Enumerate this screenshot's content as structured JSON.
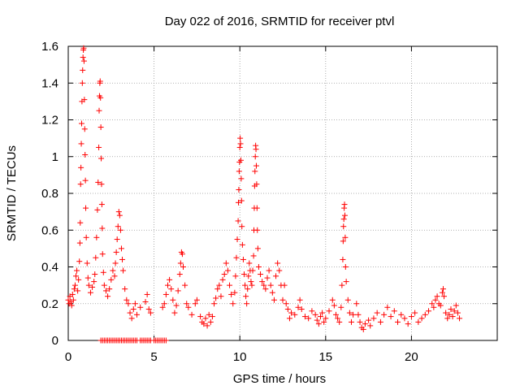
{
  "chart_data": {
    "type": "scatter",
    "title": "Day 022 of 2016, SRMTID for receiver ptvl",
    "xlabel": "GPS time / hours",
    "ylabel": "SRMTID / TECUs",
    "xlim": [
      0,
      25
    ],
    "ylim": [
      0,
      1.6
    ],
    "x_ticks": [
      "0",
      "5",
      "10",
      "15",
      "20"
    ],
    "y_ticks": [
      "0",
      "0.2",
      "0.4",
      "0.6",
      "0.8",
      "1",
      "1.2",
      "1.4",
      "1.6"
    ],
    "grid": true,
    "marker": "+",
    "color": "#ff0000",
    "series": [
      {
        "name": "SRMTID",
        "points": [
          [
            0.0,
            0.22
          ],
          [
            0.05,
            0.2
          ],
          [
            0.1,
            0.24
          ],
          [
            0.15,
            0.21
          ],
          [
            0.2,
            0.19
          ],
          [
            0.25,
            0.25
          ],
          [
            0.3,
            0.22
          ],
          [
            0.35,
            0.28
          ],
          [
            0.4,
            0.3
          ],
          [
            0.45,
            0.35
          ],
          [
            0.5,
            0.38
          ],
          [
            0.55,
            0.27
          ],
          [
            0.6,
            0.33
          ],
          [
            0.65,
            0.43
          ],
          [
            0.68,
            0.53
          ],
          [
            0.7,
            0.64
          ],
          [
            0.72,
            0.85
          ],
          [
            0.74,
            0.94
          ],
          [
            0.76,
            1.07
          ],
          [
            0.78,
            1.18
          ],
          [
            0.8,
            1.3
          ],
          [
            0.82,
            1.4
          ],
          [
            0.84,
            1.47
          ],
          [
            0.86,
            1.54
          ],
          [
            0.88,
            1.58
          ],
          [
            0.9,
            1.59
          ],
          [
            0.92,
            1.52
          ],
          [
            0.94,
            1.31
          ],
          [
            0.96,
            1.15
          ],
          [
            0.98,
            1.01
          ],
          [
            1.0,
            0.87
          ],
          [
            1.02,
            0.72
          ],
          [
            1.05,
            0.56
          ],
          [
            1.1,
            0.42
          ],
          [
            1.15,
            0.34
          ],
          [
            1.2,
            0.3
          ],
          [
            1.3,
            0.26
          ],
          [
            1.4,
            0.29
          ],
          [
            1.5,
            0.32
          ],
          [
            1.55,
            0.36
          ],
          [
            1.6,
            0.45
          ],
          [
            1.65,
            0.56
          ],
          [
            1.7,
            0.71
          ],
          [
            1.74,
            0.86
          ],
          [
            1.78,
            1.05
          ],
          [
            1.8,
            1.25
          ],
          [
            1.82,
            1.33
          ],
          [
            1.84,
            1.4
          ],
          [
            1.86,
            1.41
          ],
          [
            1.88,
            1.32
          ],
          [
            1.9,
            1.16
          ],
          [
            1.92,
            0.99
          ],
          [
            1.94,
            0.85
          ],
          [
            1.96,
            0.74
          ],
          [
            1.98,
            0.61
          ],
          [
            2.0,
            0.47
          ],
          [
            2.05,
            0.37
          ],
          [
            2.1,
            0.3
          ],
          [
            2.2,
            0.27
          ],
          [
            2.3,
            0.24
          ],
          [
            2.4,
            0.28
          ],
          [
            2.5,
            0.33
          ],
          [
            2.6,
            0.38
          ],
          [
            2.7,
            0.35
          ],
          [
            2.75,
            0.42
          ],
          [
            2.8,
            0.48
          ],
          [
            2.85,
            0.55
          ],
          [
            2.9,
            0.62
          ],
          [
            2.95,
            0.7
          ],
          [
            3.0,
            0.68
          ],
          [
            3.05,
            0.6
          ],
          [
            3.1,
            0.5
          ],
          [
            3.15,
            0.44
          ],
          [
            3.2,
            0.38
          ],
          [
            3.3,
            0.28
          ],
          [
            3.4,
            0.22
          ],
          [
            3.5,
            0.2
          ],
          [
            3.6,
            0.15
          ],
          [
            3.7,
            0.12
          ],
          [
            3.8,
            0.17
          ],
          [
            3.9,
            0.2
          ],
          [
            4.0,
            0.14
          ],
          [
            4.2,
            0.18
          ],
          [
            4.5,
            0.21
          ],
          [
            4.6,
            0.25
          ],
          [
            4.7,
            0.17
          ],
          [
            4.8,
            0.15
          ],
          [
            5.5,
            0.18
          ],
          [
            5.6,
            0.2
          ],
          [
            5.7,
            0.25
          ],
          [
            5.8,
            0.3
          ],
          [
            5.9,
            0.33
          ],
          [
            6.0,
            0.28
          ],
          [
            6.1,
            0.22
          ],
          [
            6.2,
            0.15
          ],
          [
            6.3,
            0.19
          ],
          [
            6.4,
            0.27
          ],
          [
            6.5,
            0.36
          ],
          [
            6.55,
            0.42
          ],
          [
            6.6,
            0.48
          ],
          [
            6.65,
            0.47
          ],
          [
            6.7,
            0.4
          ],
          [
            6.8,
            0.3
          ],
          [
            6.9,
            0.2
          ],
          [
            7.0,
            0.18
          ],
          [
            7.2,
            0.14
          ],
          [
            7.4,
            0.2
          ],
          [
            7.5,
            0.22
          ],
          [
            7.7,
            0.13
          ],
          [
            7.8,
            0.1
          ],
          [
            7.9,
            0.09
          ],
          [
            8.0,
            0.12
          ],
          [
            8.1,
            0.08
          ],
          [
            8.2,
            0.14
          ],
          [
            8.3,
            0.1
          ],
          [
            8.4,
            0.13
          ],
          [
            8.5,
            0.2
          ],
          [
            8.6,
            0.23
          ],
          [
            8.7,
            0.28
          ],
          [
            8.8,
            0.3
          ],
          [
            8.9,
            0.24
          ],
          [
            9.0,
            0.33
          ],
          [
            9.1,
            0.36
          ],
          [
            9.2,
            0.42
          ],
          [
            9.3,
            0.38
          ],
          [
            9.4,
            0.3
          ],
          [
            9.5,
            0.25
          ],
          [
            9.6,
            0.2
          ],
          [
            9.7,
            0.26
          ],
          [
            9.75,
            0.35
          ],
          [
            9.8,
            0.45
          ],
          [
            9.85,
            0.55
          ],
          [
            9.9,
            0.65
          ],
          [
            9.92,
            0.75
          ],
          [
            9.94,
            0.82
          ],
          [
            9.96,
            0.92
          ],
          [
            9.98,
            0.97
          ],
          [
            10.0,
            1.05
          ],
          [
            10.02,
            1.1
          ],
          [
            10.04,
            1.07
          ],
          [
            10.06,
            0.98
          ],
          [
            10.08,
            0.88
          ],
          [
            10.1,
            0.76
          ],
          [
            10.12,
            0.62
          ],
          [
            10.15,
            0.52
          ],
          [
            10.2,
            0.44
          ],
          [
            10.25,
            0.36
          ],
          [
            10.3,
            0.3
          ],
          [
            10.35,
            0.24
          ],
          [
            10.4,
            0.2
          ],
          [
            10.45,
            0.28
          ],
          [
            10.5,
            0.35
          ],
          [
            10.55,
            0.42
          ],
          [
            10.6,
            0.38
          ],
          [
            10.65,
            0.32
          ],
          [
            10.7,
            0.3
          ],
          [
            10.75,
            0.38
          ],
          [
            10.8,
            0.46
          ],
          [
            10.82,
            0.6
          ],
          [
            10.84,
            0.72
          ],
          [
            10.86,
            0.84
          ],
          [
            10.88,
            0.92
          ],
          [
            10.9,
            1.0
          ],
          [
            10.92,
            1.06
          ],
          [
            10.94,
            1.04
          ],
          [
            10.96,
            0.95
          ],
          [
            10.98,
            0.85
          ],
          [
            11.0,
            0.72
          ],
          [
            11.02,
            0.6
          ],
          [
            11.05,
            0.5
          ],
          [
            11.1,
            0.4
          ],
          [
            11.2,
            0.36
          ],
          [
            11.3,
            0.32
          ],
          [
            11.4,
            0.3
          ],
          [
            11.5,
            0.28
          ],
          [
            11.6,
            0.34
          ],
          [
            11.7,
            0.38
          ],
          [
            11.8,
            0.3
          ],
          [
            11.9,
            0.26
          ],
          [
            12.0,
            0.22
          ],
          [
            12.1,
            0.35
          ],
          [
            12.2,
            0.42
          ],
          [
            12.3,
            0.38
          ],
          [
            12.4,
            0.3
          ],
          [
            12.5,
            0.22
          ],
          [
            12.6,
            0.3
          ],
          [
            12.7,
            0.2
          ],
          [
            12.8,
            0.17
          ],
          [
            12.9,
            0.12
          ],
          [
            13.0,
            0.15
          ],
          [
            13.2,
            0.14
          ],
          [
            13.4,
            0.18
          ],
          [
            13.5,
            0.22
          ],
          [
            13.6,
            0.17
          ],
          [
            13.8,
            0.13
          ],
          [
            14.0,
            0.12
          ],
          [
            14.2,
            0.16
          ],
          [
            14.4,
            0.14
          ],
          [
            14.5,
            0.11
          ],
          [
            14.6,
            0.09
          ],
          [
            14.7,
            0.13
          ],
          [
            14.8,
            0.15
          ],
          [
            14.9,
            0.1
          ],
          [
            15.0,
            0.12
          ],
          [
            15.2,
            0.16
          ],
          [
            15.4,
            0.22
          ],
          [
            15.5,
            0.19
          ],
          [
            15.6,
            0.14
          ],
          [
            15.7,
            0.12
          ],
          [
            15.8,
            0.1
          ],
          [
            15.9,
            0.18
          ],
          [
            15.95,
            0.3
          ],
          [
            16.0,
            0.44
          ],
          [
            16.02,
            0.54
          ],
          [
            16.04,
            0.62
          ],
          [
            16.06,
            0.66
          ],
          [
            16.08,
            0.72
          ],
          [
            16.1,
            0.74
          ],
          [
            16.12,
            0.68
          ],
          [
            16.14,
            0.56
          ],
          [
            16.16,
            0.4
          ],
          [
            16.2,
            0.32
          ],
          [
            16.3,
            0.22
          ],
          [
            16.4,
            0.15
          ],
          [
            16.5,
            0.1
          ],
          [
            16.6,
            0.14
          ],
          [
            16.8,
            0.2
          ],
          [
            16.9,
            0.14
          ],
          [
            17.0,
            0.1
          ],
          [
            17.1,
            0.07
          ],
          [
            17.2,
            0.06
          ],
          [
            17.3,
            0.09
          ],
          [
            17.5,
            0.11
          ],
          [
            17.6,
            0.08
          ],
          [
            17.8,
            0.12
          ],
          [
            18.0,
            0.15
          ],
          [
            18.2,
            0.1
          ],
          [
            18.4,
            0.14
          ],
          [
            18.6,
            0.18
          ],
          [
            18.8,
            0.13
          ],
          [
            19.0,
            0.16
          ],
          [
            19.2,
            0.1
          ],
          [
            19.4,
            0.14
          ],
          [
            19.6,
            0.12
          ],
          [
            19.8,
            0.09
          ],
          [
            20.0,
            0.13
          ],
          [
            20.2,
            0.15
          ],
          [
            20.4,
            0.1
          ],
          [
            20.6,
            0.12
          ],
          [
            20.8,
            0.14
          ],
          [
            21.0,
            0.16
          ],
          [
            21.2,
            0.2
          ],
          [
            21.3,
            0.18
          ],
          [
            21.4,
            0.22
          ],
          [
            21.5,
            0.24
          ],
          [
            21.6,
            0.2
          ],
          [
            21.7,
            0.19
          ],
          [
            21.8,
            0.26
          ],
          [
            21.85,
            0.28
          ],
          [
            21.9,
            0.24
          ],
          [
            22.0,
            0.15
          ],
          [
            22.1,
            0.12
          ],
          [
            22.2,
            0.14
          ],
          [
            22.3,
            0.17
          ],
          [
            22.4,
            0.13
          ],
          [
            22.5,
            0.16
          ],
          [
            22.6,
            0.19
          ],
          [
            22.7,
            0.15
          ],
          [
            22.8,
            0.12
          ],
          [
            1.9,
            0.0
          ],
          [
            2.0,
            0.0
          ],
          [
            2.1,
            0.0
          ],
          [
            2.2,
            0.0
          ],
          [
            2.3,
            0.0
          ],
          [
            2.4,
            0.0
          ],
          [
            2.5,
            0.0
          ],
          [
            2.6,
            0.0
          ],
          [
            2.7,
            0.0
          ],
          [
            2.8,
            0.0
          ],
          [
            2.9,
            0.0
          ],
          [
            3.0,
            0.0
          ],
          [
            3.1,
            0.0
          ],
          [
            3.2,
            0.0
          ],
          [
            3.3,
            0.0
          ],
          [
            3.4,
            0.0
          ],
          [
            3.5,
            0.0
          ],
          [
            3.6,
            0.0
          ],
          [
            3.7,
            0.0
          ],
          [
            3.8,
            0.0
          ],
          [
            3.9,
            0.0
          ],
          [
            4.0,
            0.0
          ],
          [
            4.2,
            0.0
          ],
          [
            4.3,
            0.0
          ],
          [
            4.4,
            0.0
          ],
          [
            4.5,
            0.0
          ],
          [
            4.6,
            0.0
          ],
          [
            4.7,
            0.0
          ],
          [
            4.8,
            0.0
          ],
          [
            5.0,
            0.0
          ],
          [
            5.1,
            0.0
          ],
          [
            5.2,
            0.0
          ],
          [
            5.3,
            0.0
          ],
          [
            5.4,
            0.0
          ],
          [
            5.5,
            0.0
          ],
          [
            5.6,
            0.0
          ],
          [
            5.7,
            0.0
          ]
        ]
      }
    ]
  }
}
